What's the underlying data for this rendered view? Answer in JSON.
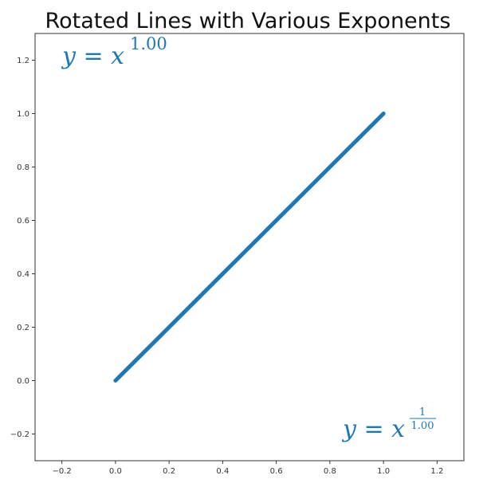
{
  "chart_data": {
    "type": "line",
    "title": "Rotated Lines with Various Exponents",
    "x": [
      0,
      1
    ],
    "values": [
      0,
      1
    ],
    "color": "#1f77b4",
    "xlim": [
      -0.3,
      1.3
    ],
    "ylim": [
      -0.3,
      1.3
    ],
    "xticks": [
      {
        "value": -0.2,
        "label": "−0.2"
      },
      {
        "value": 0,
        "label": "0.0"
      },
      0.2,
      0.4,
      0.6,
      0.8,
      {
        "value": 1,
        "label": "1.0"
      },
      1.2
    ],
    "yticks": [
      {
        "value": -0.2,
        "label": "−0.2"
      },
      {
        "value": 0,
        "label": "0.0"
      },
      0.2,
      0.4,
      0.6,
      0.8,
      {
        "value": 1,
        "label": "1.0"
      },
      1.2
    ],
    "annotations": [
      {
        "base": "y = x",
        "exponent": "1.00"
      },
      {
        "base": "y = x",
        "numerator": "1",
        "denominator": "1.00"
      }
    ]
  }
}
